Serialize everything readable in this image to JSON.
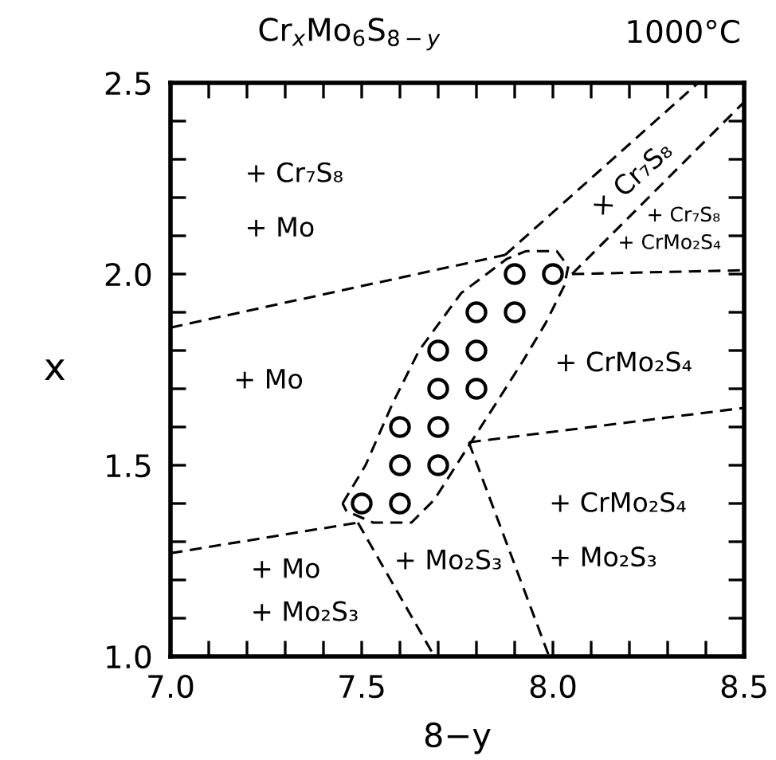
{
  "chart_data": {
    "type": "scatter",
    "title": "Cr$_{x}$Mo$_{6}$S$_{8−y}$",
    "subtitle": "1000°C",
    "xlabel": "8−y",
    "ylabel": "x",
    "xlim": [
      7.0,
      8.5
    ],
    "ylim": [
      1.0,
      2.5
    ],
    "xticks": [
      {
        "value": 7.0,
        "label": "7.0"
      },
      {
        "value": 7.1,
        "label": null
      },
      {
        "value": 7.2,
        "label": null
      },
      {
        "value": 7.3,
        "label": null
      },
      {
        "value": 7.4,
        "label": null
      },
      {
        "value": 7.5,
        "label": "7.5"
      },
      {
        "value": 7.6,
        "label": null
      },
      {
        "value": 7.7,
        "label": null
      },
      {
        "value": 7.8,
        "label": null
      },
      {
        "value": 7.9,
        "label": null
      },
      {
        "value": 8.0,
        "label": "8.0"
      },
      {
        "value": 8.1,
        "label": null
      },
      {
        "value": 8.2,
        "label": null
      },
      {
        "value": 8.3,
        "label": null
      },
      {
        "value": 8.4,
        "label": null
      },
      {
        "value": 8.5,
        "label": "8.5"
      }
    ],
    "yticks": [
      {
        "value": 1.0,
        "label": "1.0"
      },
      {
        "value": 1.1,
        "label": null
      },
      {
        "value": 1.2,
        "label": null
      },
      {
        "value": 1.3,
        "label": null
      },
      {
        "value": 1.4,
        "label": null
      },
      {
        "value": 1.5,
        "label": "1.5"
      },
      {
        "value": 1.6,
        "label": null
      },
      {
        "value": 1.7,
        "label": null
      },
      {
        "value": 1.8,
        "label": null
      },
      {
        "value": 1.9,
        "label": null
      },
      {
        "value": 2.0,
        "label": "2.0"
      },
      {
        "value": 2.1,
        "label": null
      },
      {
        "value": 2.2,
        "label": null
      },
      {
        "value": 2.3,
        "label": null
      },
      {
        "value": 2.4,
        "label": null
      },
      {
        "value": 2.5,
        "label": "2.5"
      }
    ],
    "grid": false,
    "legend": false,
    "series": [
      {
        "marker": "circle",
        "color": "#000000",
        "x": [
          7.5,
          7.6,
          7.6,
          7.7,
          7.6,
          7.7,
          7.7,
          7.8,
          7.7,
          7.8,
          7.8,
          7.9,
          7.9,
          8.0
        ],
        "values": [
          1.4,
          1.4,
          1.5,
          1.5,
          1.6,
          1.6,
          1.7,
          1.7,
          1.8,
          1.8,
          1.9,
          1.9,
          2.0,
          2.0
        ]
      },
      {
        "type": "line",
        "line_style": "dashed",
        "color": "#000000",
        "x": [
          7.0,
          7.875
        ],
        "values": [
          1.86,
          2.05
        ]
      },
      {
        "type": "line",
        "line_style": "dashed",
        "color": "#000000",
        "x": [
          7.875,
          8.38
        ],
        "values": [
          2.05,
          2.5
        ]
      },
      {
        "type": "line",
        "line_style": "dashed",
        "color": "#000000",
        "x": [
          8.05,
          8.5
        ],
        "values": [
          2.0,
          2.45
        ]
      },
      {
        "type": "line",
        "line_style": "dashed",
        "color": "#000000",
        "x": [
          8.05,
          8.5
        ],
        "values": [
          2.0,
          2.01
        ]
      },
      {
        "type": "line",
        "line_style": "dashed",
        "color": "#000000",
        "x": [
          7.0,
          7.49
        ],
        "values": [
          1.27,
          1.35
        ]
      },
      {
        "type": "line",
        "line_style": "dashed",
        "color": "#000000",
        "x": [
          7.49,
          7.69
        ],
        "values": [
          1.35,
          1.0
        ]
      },
      {
        "type": "line",
        "line_style": "dashed",
        "color": "#000000",
        "x": [
          7.78,
          8.5
        ],
        "values": [
          1.56,
          1.65
        ]
      },
      {
        "type": "line",
        "line_style": "dashed",
        "color": "#000000",
        "x": [
          7.78,
          7.99
        ],
        "values": [
          1.56,
          1.0
        ]
      },
      {
        "type": "line",
        "line_style": "dashed",
        "color": "#000000",
        "x": [
          7.45,
          7.51,
          7.58,
          7.65,
          7.76,
          7.88,
          7.93,
          8.01,
          8.04
        ],
        "values": [
          1.4,
          1.5,
          1.66,
          1.8,
          1.95,
          2.04,
          2.06,
          2.06,
          2.02
        ]
      },
      {
        "type": "line",
        "line_style": "dashed",
        "color": "#000000",
        "x": [
          8.04,
          8.03,
          7.98,
          7.92,
          7.85,
          7.76,
          7.69,
          7.63,
          7.53,
          7.46,
          7.45
        ],
        "values": [
          2.02,
          1.97,
          1.87,
          1.77,
          1.66,
          1.52,
          1.41,
          1.35,
          1.35,
          1.38,
          1.4
        ]
      }
    ],
    "annotations": [
      "+ Cr₇S₈",
      "+ Mo",
      "+ Mo",
      "× Cr₇S₈",
      "+ Cr₇S₈",
      "+ CrMo₂S₄",
      "+ CrMo₂S₄",
      "+ CrMo₂S₄",
      "+ Mo₂S₃",
      "+ Mo₂S₃",
      "+ Mo",
      "+ Mo₂S₃"
    ]
  }
}
